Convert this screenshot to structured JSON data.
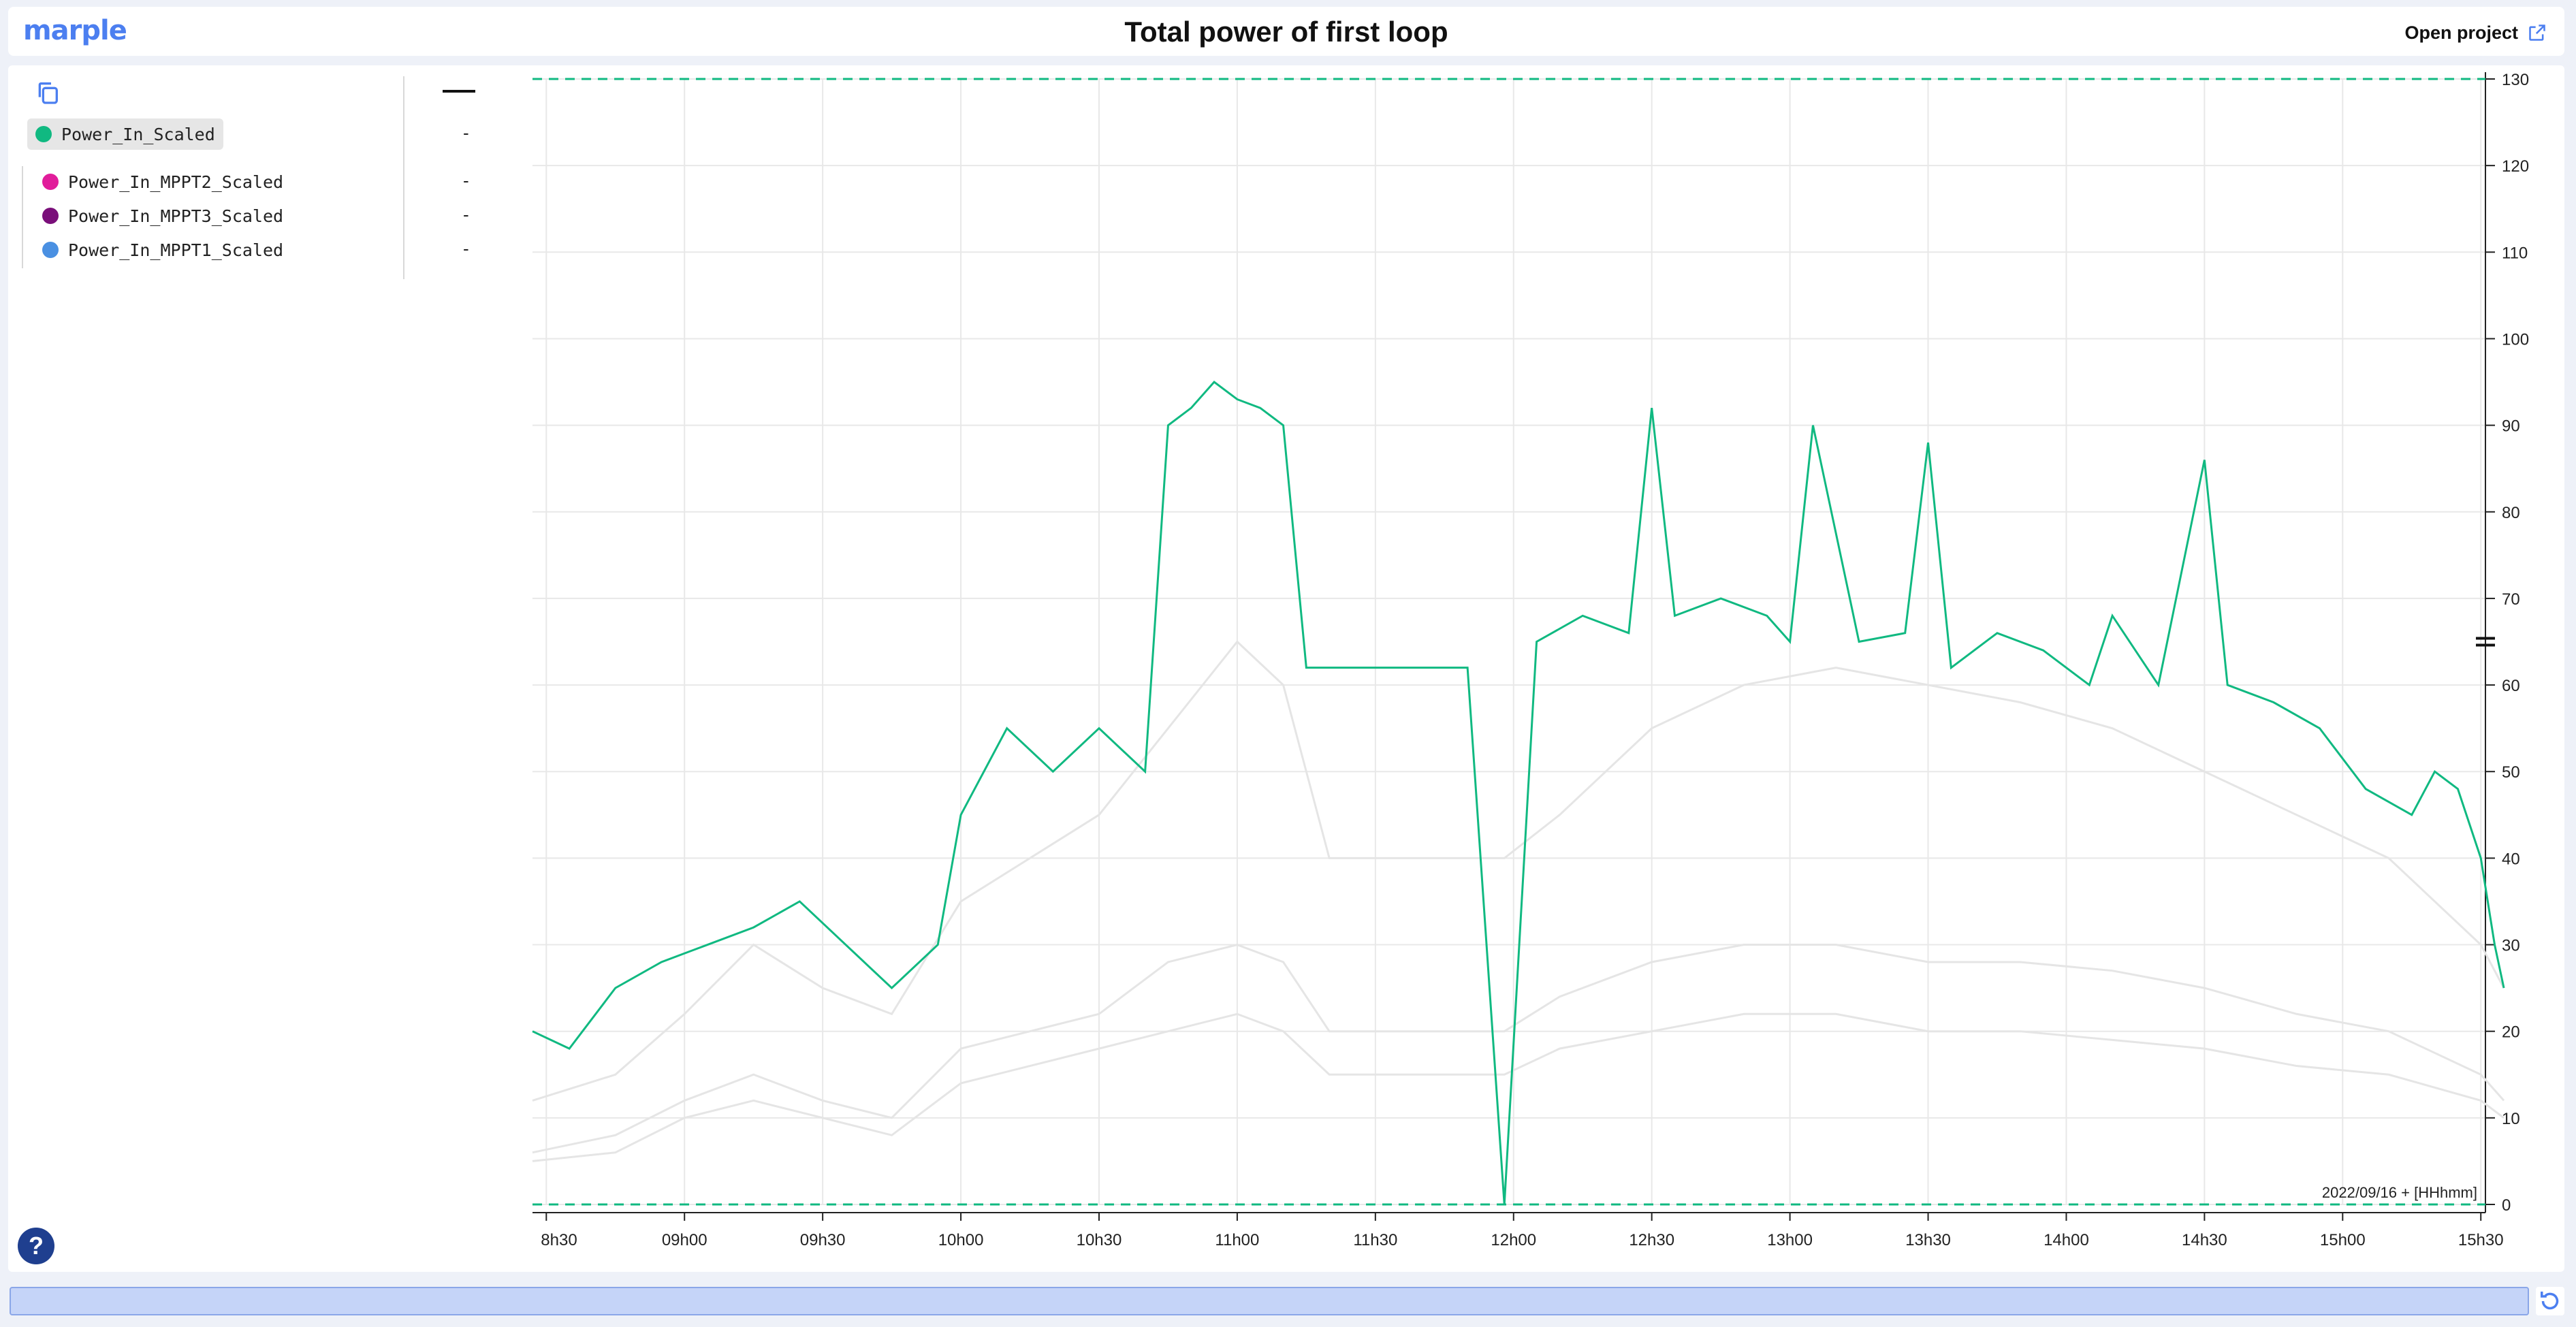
{
  "app": {
    "logo_text": "marple",
    "title": "Total power of first loop",
    "open_project_label": "Open project"
  },
  "legend": {
    "header_value": "",
    "items": [
      {
        "name": "Power_In_Scaled",
        "color": "#10b981",
        "value": "-",
        "active": true
      },
      {
        "name": "Power_In_MPPT2_Scaled",
        "color": "#e11d9b",
        "value": "-",
        "active": false
      },
      {
        "name": "Power_In_MPPT3_Scaled",
        "color": "#7a0f7a",
        "value": "-",
        "active": false
      },
      {
        "name": "Power_In_MPPT1_Scaled",
        "color": "#4a90e2",
        "value": "-",
        "active": false
      }
    ]
  },
  "help_label": "?",
  "chart_data": {
    "type": "line",
    "xlabel": "2022/09/16 + [HHhmm]",
    "ylabel": "",
    "x_ticks": [
      "8h30",
      "09h00",
      "09h30",
      "10h00",
      "10h30",
      "11h00",
      "11h30",
      "12h00",
      "12h30",
      "13h00",
      "13h30",
      "14h00",
      "14h30",
      "15h00",
      "15h30"
    ],
    "y_ticks": [
      0,
      10,
      20,
      30,
      40,
      50,
      60,
      70,
      80,
      90,
      100,
      110,
      120,
      130
    ],
    "ylim": [
      0,
      130
    ],
    "xlim_minutes": [
      507,
      931
    ],
    "grid": true,
    "threshold_lines": [
      0,
      130
    ],
    "active_series": {
      "name": "Power_In_Scaled",
      "color": "#10b981",
      "x": [
        "08:27",
        "08:35",
        "08:45",
        "08:55",
        "09:05",
        "09:15",
        "09:25",
        "09:35",
        "09:45",
        "09:55",
        "10:00",
        "10:10",
        "10:20",
        "10:30",
        "10:40",
        "10:45",
        "10:50",
        "10:55",
        "11:00",
        "11:05",
        "11:10",
        "11:15",
        "11:20",
        "11:30",
        "11:40",
        "11:50",
        "11:58",
        "12:05",
        "12:15",
        "12:25",
        "12:30",
        "12:35",
        "12:45",
        "12:55",
        "13:00",
        "13:05",
        "13:15",
        "13:25",
        "13:30",
        "13:35",
        "13:45",
        "13:55",
        "14:05",
        "14:10",
        "14:20",
        "14:30",
        "14:35",
        "14:45",
        "14:55",
        "15:05",
        "15:15",
        "15:20",
        "15:25",
        "15:30",
        "15:33",
        "15:35"
      ],
      "y": [
        20,
        18,
        25,
        28,
        30,
        32,
        35,
        30,
        25,
        30,
        45,
        55,
        50,
        55,
        50,
        90,
        92,
        95,
        93,
        92,
        90,
        62,
        62,
        62,
        62,
        62,
        0,
        65,
        68,
        66,
        92,
        68,
        70,
        68,
        65,
        90,
        65,
        66,
        88,
        62,
        66,
        64,
        60,
        68,
        60,
        86,
        60,
        58,
        55,
        48,
        45,
        50,
        48,
        40,
        30,
        25
      ]
    },
    "background_series": [
      {
        "name": "Power_In_MPPT2_Scaled",
        "color": "#e5e5e5",
        "x": [
          "08:27",
          "08:45",
          "09:00",
          "09:15",
          "09:30",
          "09:45",
          "10:00",
          "10:15",
          "10:30",
          "10:45",
          "11:00",
          "11:10",
          "11:20",
          "11:58",
          "12:10",
          "12:30",
          "12:50",
          "13:10",
          "13:30",
          "13:50",
          "14:10",
          "14:30",
          "14:50",
          "15:10",
          "15:30",
          "15:35"
        ],
        "y": [
          12,
          15,
          22,
          30,
          25,
          22,
          35,
          40,
          45,
          55,
          65,
          60,
          40,
          40,
          45,
          55,
          60,
          62,
          60,
          58,
          55,
          50,
          45,
          40,
          30,
          25
        ]
      },
      {
        "name": "Power_In_MPPT3_Scaled",
        "color": "#e5e5e5",
        "x": [
          "08:27",
          "08:45",
          "09:00",
          "09:15",
          "09:30",
          "09:45",
          "10:00",
          "10:15",
          "10:30",
          "10:45",
          "11:00",
          "11:10",
          "11:20",
          "11:58",
          "12:10",
          "12:30",
          "12:50",
          "13:10",
          "13:30",
          "13:50",
          "14:10",
          "14:30",
          "14:50",
          "15:10",
          "15:30",
          "15:35"
        ],
        "y": [
          6,
          8,
          12,
          15,
          12,
          10,
          18,
          20,
          22,
          28,
          30,
          28,
          20,
          20,
          24,
          28,
          30,
          30,
          28,
          28,
          27,
          25,
          22,
          20,
          15,
          12
        ]
      },
      {
        "name": "Power_In_MPPT1_Scaled",
        "color": "#e5e5e5",
        "x": [
          "08:27",
          "08:45",
          "09:00",
          "09:15",
          "09:30",
          "09:45",
          "10:00",
          "10:15",
          "10:30",
          "10:45",
          "11:00",
          "11:10",
          "11:20",
          "11:58",
          "12:10",
          "12:30",
          "12:50",
          "13:10",
          "13:30",
          "13:50",
          "14:10",
          "14:30",
          "14:50",
          "15:10",
          "15:30",
          "15:35"
        ],
        "y": [
          5,
          6,
          10,
          12,
          10,
          8,
          14,
          16,
          18,
          20,
          22,
          20,
          15,
          15,
          18,
          20,
          22,
          22,
          20,
          20,
          19,
          18,
          16,
          15,
          12,
          10
        ]
      }
    ]
  }
}
